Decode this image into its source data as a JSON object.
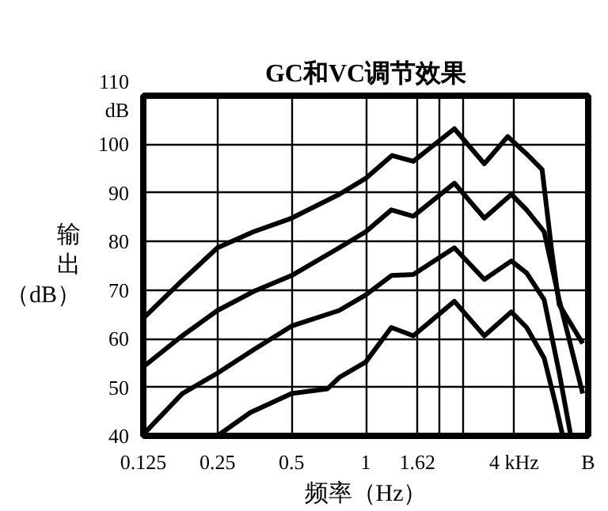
{
  "chart_data": {
    "type": "line",
    "title": "GC和VC调节效果",
    "xlabel": "频率（Hz）",
    "ylabel": "输出（dB）",
    "log": "x",
    "grid": true,
    "marker": "none",
    "line_style": "solid",
    "xlim": [
      0.125,
      8
    ],
    "ylim": [
      40,
      110
    ],
    "xticks": [
      0.125,
      0.25,
      0.5,
      1,
      1.62,
      {
        "value": 2,
        "label": null
      },
      {
        "value": 2.5,
        "label": null
      },
      {
        "value": 4,
        "label": "4 kHz"
      },
      {
        "value": 8,
        "label": "B"
      }
    ],
    "yticks": [
      40,
      50,
      60,
      70,
      80,
      90,
      100,
      {
        "value": 110,
        "label": "110\ndB"
      }
    ],
    "series": [
      {
        "color": "#000000",
        "x": [
          0.125,
          0.18,
          0.25,
          0.35,
          0.5,
          0.78,
          1.0,
          1.28,
          1.56,
          2.29,
          3.03,
          3.77,
          4.5,
          5.2,
          5.7,
          6.1,
          7.6
        ],
        "values": [
          64.2,
          72,
          78.7,
          82,
          84.8,
          89.7,
          93,
          97.7,
          96.5,
          103.2,
          96,
          101.6,
          98,
          94.8,
          77.7,
          67,
          59
        ]
      },
      {
        "color": "#000000",
        "x": [
          0.125,
          0.18,
          0.25,
          0.35,
          0.5,
          0.78,
          1.0,
          1.27,
          1.56,
          2.29,
          3.03,
          3.9,
          4.5,
          5.3,
          6.1,
          7.6
        ],
        "values": [
          54.2,
          60.6,
          65.8,
          69.7,
          73,
          78.7,
          82,
          86.5,
          85.2,
          92,
          84.8,
          89.7,
          86.5,
          82,
          68,
          48.7
        ]
      },
      {
        "color": "#000000",
        "x": [
          0.125,
          0.18,
          0.25,
          0.35,
          0.5,
          0.78,
          1.0,
          1.27,
          1.56,
          2.29,
          3.03,
          3.9,
          4.5,
          5.3,
          6.1,
          6.8
        ],
        "values": [
          40.3,
          48.7,
          52.9,
          57.7,
          62.6,
          65.8,
          69,
          73,
          73.2,
          78.7,
          72.2,
          76,
          73.5,
          68,
          53,
          40
        ]
      },
      {
        "color": "#000000",
        "x": [
          0.25,
          0.34,
          0.5,
          0.7,
          0.78,
          1.0,
          1.27,
          1.56,
          2.29,
          3.03,
          3.9,
          4.5,
          5.3,
          5.9,
          6.3
        ],
        "values": [
          40,
          44.8,
          48.7,
          49.7,
          52,
          55.2,
          62.3,
          60.6,
          67.7,
          60.6,
          65.5,
          62.3,
          56,
          46.5,
          40
        ]
      }
    ]
  }
}
